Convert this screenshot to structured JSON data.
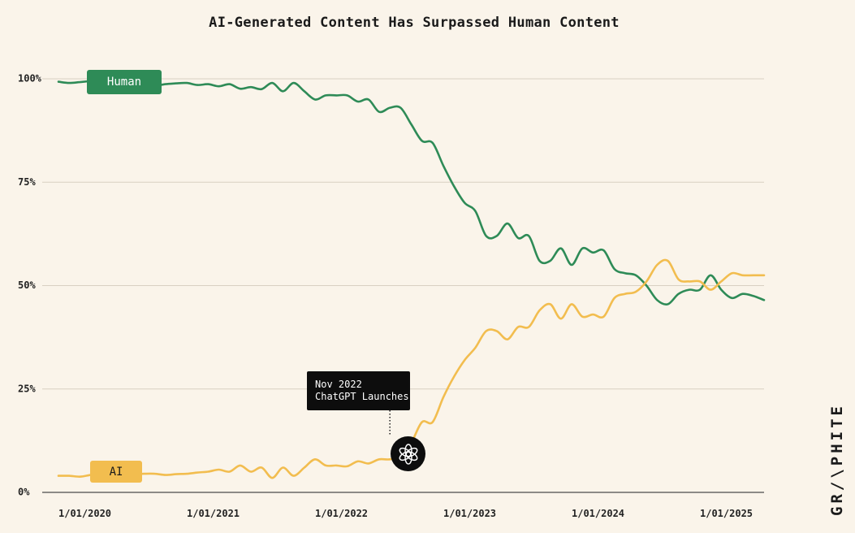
{
  "chart_data": {
    "type": "line",
    "title": "AI-Generated Content Has Surpassed Human Content",
    "xlabel": "",
    "ylabel": "",
    "x_tick_labels": [
      "1/01/2020",
      "1/01/2021",
      "1/01/2022",
      "1/01/2023",
      "1/01/2024",
      "1/01/2025"
    ],
    "y_tick_labels": [
      "100%",
      "75%",
      "50%",
      "25%",
      "0%"
    ],
    "y_tick_values": [
      100,
      75,
      50,
      25,
      0
    ],
    "ylim": [
      0,
      100
    ],
    "xlim": [
      "2020-01",
      "2025-07"
    ],
    "grid": "horizontal",
    "x": [
      "2020-01",
      "2020-02",
      "2020-03",
      "2020-04",
      "2020-05",
      "2020-06",
      "2020-07",
      "2020-08",
      "2020-09",
      "2020-10",
      "2020-11",
      "2020-12",
      "2021-01",
      "2021-02",
      "2021-03",
      "2021-04",
      "2021-05",
      "2021-06",
      "2021-07",
      "2021-08",
      "2021-09",
      "2021-10",
      "2021-11",
      "2021-12",
      "2022-01",
      "2022-02",
      "2022-03",
      "2022-04",
      "2022-05",
      "2022-06",
      "2022-07",
      "2022-08",
      "2022-09",
      "2022-10",
      "2022-11",
      "2022-12",
      "2023-01",
      "2023-02",
      "2023-03",
      "2023-04",
      "2023-05",
      "2023-06",
      "2023-07",
      "2023-08",
      "2023-09",
      "2023-10",
      "2023-11",
      "2023-12",
      "2024-01",
      "2024-02",
      "2024-03",
      "2024-04",
      "2024-05",
      "2024-06",
      "2024-07",
      "2024-08",
      "2024-09",
      "2024-10",
      "2024-11",
      "2024-12",
      "2025-01",
      "2025-02",
      "2025-03",
      "2025-04",
      "2025-05",
      "2025-06",
      "2025-07"
    ],
    "series": [
      {
        "name": "Human",
        "color": "#2E8B57",
        "values": [
          99.3,
          99.0,
          99.2,
          99.4,
          99.0,
          98.8,
          98.6,
          99.0,
          98.5,
          98.3,
          98.7,
          98.9,
          99.0,
          98.5,
          98.7,
          98.2,
          98.7,
          97.6,
          98.0,
          97.5,
          99.0,
          97.0,
          99.0,
          97.0,
          95.0,
          96.0,
          96.0,
          96.0,
          94.5,
          95.0,
          92.0,
          93.0,
          93.0,
          89.0,
          85.0,
          84.5,
          79.0,
          74.0,
          70.0,
          68.0,
          62.0,
          62.0,
          65.0,
          61.5,
          62.0,
          56.0,
          56.0,
          59.0,
          55.0,
          59.0,
          58.0,
          58.5,
          54.0,
          53.0,
          52.5,
          50.0,
          46.5,
          45.5,
          48.0,
          49.0,
          49.0,
          52.5,
          49.0,
          47.0,
          48.0,
          47.5,
          46.5
        ]
      },
      {
        "name": "AI",
        "color": "#F2BD4F",
        "values": [
          4.0,
          4.0,
          3.8,
          4.2,
          4.5,
          4.5,
          4.6,
          4.4,
          4.5,
          4.5,
          4.2,
          4.4,
          4.5,
          4.8,
          5.0,
          5.5,
          5.0,
          6.5,
          5.0,
          6.0,
          3.5,
          6.0,
          4.0,
          6.0,
          8.0,
          6.5,
          6.5,
          6.3,
          7.5,
          7.0,
          8.0,
          8.0,
          9.0,
          12.0,
          17.0,
          17.0,
          23.0,
          28.0,
          32.0,
          35.0,
          39.0,
          39.0,
          37.0,
          40.0,
          40.0,
          44.0,
          45.5,
          42.0,
          45.5,
          42.5,
          43.0,
          42.5,
          47.0,
          48.0,
          48.5,
          51.0,
          55.0,
          56.0,
          51.5,
          51.0,
          51.0,
          49.0,
          51.0,
          53.0,
          52.5,
          52.5,
          52.5
        ]
      }
    ],
    "annotation": {
      "line1": "Nov 2022",
      "line2": "ChatGPT Launches",
      "x": "2022-08",
      "icon": "openai-logo-icon"
    }
  },
  "labels": {
    "human": "Human",
    "ai": "AI"
  },
  "colors": {
    "background": "#FAF4EA",
    "human": "#2E8B57",
    "ai": "#F2BD4F",
    "grid": "#D8D0C2",
    "annotation": "#0d0d0d"
  },
  "brand": "GR/\\PHITE"
}
